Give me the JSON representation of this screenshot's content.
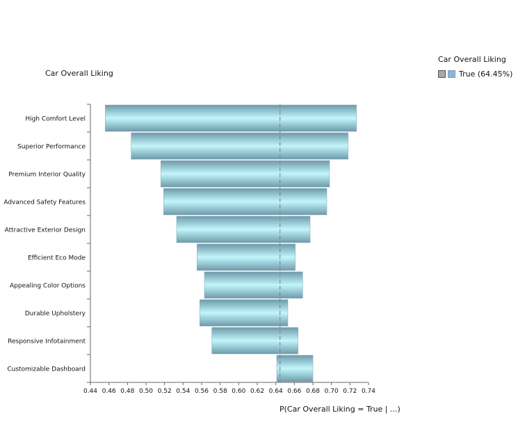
{
  "chart_data": {
    "type": "bar",
    "orientation": "horizontal",
    "title": "Car Overall Liking",
    "xlabel": "P(Car Overall Liking = True | ...)",
    "legend": {
      "title": "Car Overall Liking",
      "entries": [
        "True (64.45%)"
      ],
      "position": "top-right"
    },
    "baseline": 0.6445,
    "xlim": [
      0.44,
      0.74
    ],
    "xticks": [
      "0.44",
      "0.46",
      "0.48",
      "0.50",
      "0.52",
      "0.54",
      "0.56",
      "0.58",
      "0.60",
      "0.62",
      "0.64",
      "0.66",
      "0.68",
      "0.70",
      "0.72",
      "0.74"
    ],
    "categories": [
      "High Comfort Level",
      "Superior Performance",
      "Premium Interior Quality",
      "Advanced Safety Features",
      "Attractive Exterior Design",
      "Efficient Eco Mode",
      "Appealing Color Options",
      "Durable Upholstery",
      "Responsive Infotainment",
      "Customizable Dashboard"
    ],
    "low": [
      0.456,
      0.484,
      0.516,
      0.519,
      0.533,
      0.555,
      0.563,
      0.558,
      0.571,
      0.641
    ],
    "high": [
      0.727,
      0.718,
      0.698,
      0.695,
      0.677,
      0.661,
      0.669,
      0.653,
      0.664,
      0.68
    ]
  }
}
